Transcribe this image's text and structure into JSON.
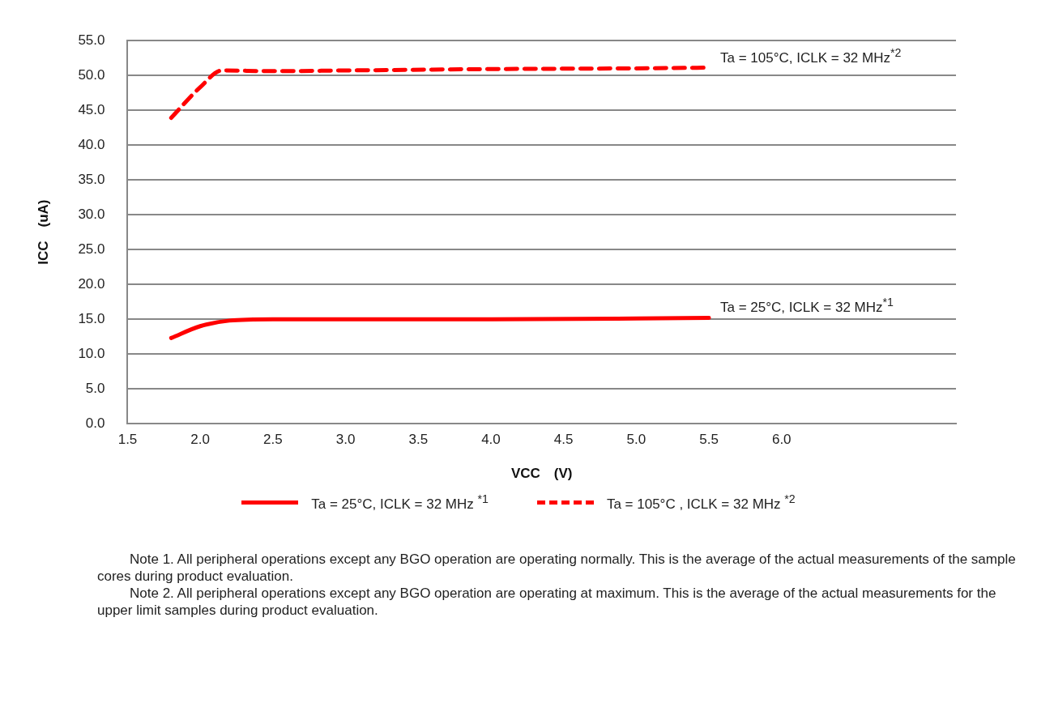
{
  "chart_data": {
    "type": "line",
    "xlabel": "VCC　(V)",
    "ylabel": "ICC　(uA)",
    "xlim": [
      1.5,
      7.2
    ],
    "xticks": [
      1.5,
      {
        "value": 2,
        "label": "2.0"
      },
      2.5,
      {
        "value": 3,
        "label": "3.0"
      },
      3.5,
      {
        "value": 4,
        "label": "4.0"
      },
      4.5,
      {
        "value": 5,
        "label": "5.0"
      },
      5.5,
      {
        "value": 6,
        "label": "6.0"
      }
    ],
    "ylim": [
      0,
      55
    ],
    "yticks": [
      {
        "value": 0,
        "label": "0.0"
      },
      {
        "value": 5,
        "label": "5.0"
      },
      {
        "value": 10,
        "label": "10.0"
      },
      {
        "value": 15,
        "label": "15.0"
      },
      {
        "value": 20,
        "label": "20.0"
      },
      {
        "value": 25,
        "label": "25.0"
      },
      {
        "value": 30,
        "label": "30.0"
      },
      {
        "value": 35,
        "label": "35.0"
      },
      {
        "value": 40,
        "label": "40.0"
      },
      {
        "value": 45,
        "label": "45.0"
      },
      {
        "value": 50,
        "label": "50.0"
      },
      {
        "value": 55,
        "label": "55.0"
      }
    ],
    "grid": "y",
    "legend": "bottom",
    "marker": "none",
    "series": [
      {
        "name": "Ta = 25°C, ICLK = 32 MHz $^{*1}$",
        "color": "#ff0000",
        "line_style": "solid",
        "x": [
          1.8,
          2.0,
          2.2,
          2.5,
          3.0,
          4.0,
          5.0,
          5.5
        ],
        "values": [
          12.3,
          14.0,
          14.8,
          15.0,
          15.0,
          15.0,
          15.1,
          15.2
        ]
      },
      {
        "name": "Ta = 105°C , ICLK = 32 MHz $^{*2}$",
        "color": "#ff0000",
        "line_style": "dashed",
        "x": [
          1.8,
          2.0,
          2.15,
          2.5,
          3.0,
          4.0,
          5.0,
          5.5
        ],
        "values": [
          43.9,
          48.3,
          50.7,
          50.6,
          50.7,
          50.9,
          51.0,
          51.1
        ]
      }
    ],
    "annotations": [
      {
        "text": "Ta = 105°C, ICLK = 32 MHz$^{*2}$",
        "x": 5.5,
        "y": 51.1
      },
      {
        "text": "Ta = 25°C, ICLK = 32 MHz$^{*1}$",
        "x": 5.5,
        "y": 15.2
      },
      "Note 1. All peripheral operations except any BGO operation are operating normally. This is the average of the actual measurements of the sample cores during product evaluation.",
      "Note 2. All peripheral operations except any BGO operation are operating at maximum. This is the average of the actual measurements for the upper limit samples during product evaluation."
    ]
  }
}
